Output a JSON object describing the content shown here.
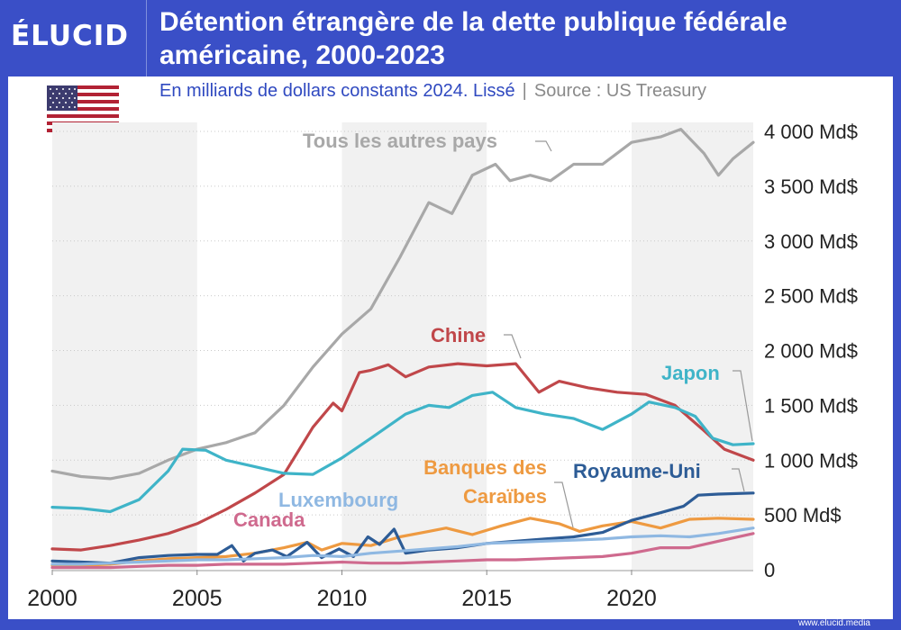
{
  "brand": {
    "logo": "ÉLUCID",
    "url": "www.elucid.media"
  },
  "header": {
    "title": "Détention étrangère de la dette publique fédérale américaine, 2000-2023"
  },
  "subtitle": {
    "text": "En milliards de dollars constants 2024. Lissé",
    "source": "Source : US Treasury"
  },
  "flag": {
    "country": "United States",
    "icon": "us-flag-icon"
  },
  "colors": {
    "brand_blue": "#3a4fc7",
    "grey": "#a8a8a8",
    "red": "#c0474a",
    "teal": "#3fb4c8",
    "orange": "#ee9a41",
    "dark_blue": "#2d5c96",
    "light_blue": "#8fb8e2",
    "pink": "#cf6a8e"
  },
  "chart_data": {
    "type": "line",
    "title": "Détention étrangère de la dette publique fédérale américaine, 2000-2023",
    "ylabel": "En milliards de dollars constants 2024",
    "xlim": [
      2000,
      2024.2
    ],
    "ylim": [
      0,
      4000
    ],
    "x_ticks": [
      "2000",
      "2005",
      "2010",
      "2015",
      "2020"
    ],
    "y_ticks": [
      "0",
      "500 Md$",
      "1 000 Md$",
      "1 500 Md$",
      "2 000 Md$",
      "2 500 Md$",
      "3 000 Md$",
      "3 500 Md$",
      "4 000 Md$"
    ],
    "shaded_bands": [
      [
        2000,
        2005
      ],
      [
        2010,
        2015
      ],
      [
        2020,
        2024.2
      ]
    ],
    "series": [
      {
        "name": "Tous les autres pays",
        "color": "#a8a8a8",
        "points": [
          [
            2000,
            900
          ],
          [
            2001,
            850
          ],
          [
            2002,
            830
          ],
          [
            2003,
            880
          ],
          [
            2004,
            1000
          ],
          [
            2005,
            1100
          ],
          [
            2006,
            1160
          ],
          [
            2007,
            1250
          ],
          [
            2008,
            1500
          ],
          [
            2009,
            1850
          ],
          [
            2010,
            2150
          ],
          [
            2011,
            2380
          ],
          [
            2012,
            2850
          ],
          [
            2013,
            3350
          ],
          [
            2013.8,
            3250
          ],
          [
            2014.5,
            3600
          ],
          [
            2015.3,
            3700
          ],
          [
            2015.8,
            3550
          ],
          [
            2016.5,
            3600
          ],
          [
            2017.2,
            3550
          ],
          [
            2018,
            3700
          ],
          [
            2019,
            3700
          ],
          [
            2020,
            3900
          ],
          [
            2021,
            3950
          ],
          [
            2021.7,
            4020
          ],
          [
            2022.5,
            3800
          ],
          [
            2023,
            3600
          ],
          [
            2023.5,
            3750
          ],
          [
            2024.2,
            3900
          ]
        ]
      },
      {
        "name": "Chine",
        "color": "#c0474a",
        "points": [
          [
            2000,
            190
          ],
          [
            2001,
            180
          ],
          [
            2002,
            220
          ],
          [
            2003,
            270
          ],
          [
            2004,
            330
          ],
          [
            2005,
            420
          ],
          [
            2006,
            550
          ],
          [
            2007,
            700
          ],
          [
            2008,
            870
          ],
          [
            2009,
            1300
          ],
          [
            2009.7,
            1520
          ],
          [
            2010,
            1450
          ],
          [
            2010.6,
            1800
          ],
          [
            2011,
            1820
          ],
          [
            2011.6,
            1870
          ],
          [
            2012.2,
            1760
          ],
          [
            2013,
            1850
          ],
          [
            2014,
            1880
          ],
          [
            2015,
            1860
          ],
          [
            2016,
            1880
          ],
          [
            2016.8,
            1620
          ],
          [
            2017.5,
            1720
          ],
          [
            2018.5,
            1660
          ],
          [
            2019.5,
            1620
          ],
          [
            2020.5,
            1600
          ],
          [
            2021.5,
            1500
          ],
          [
            2022.5,
            1270
          ],
          [
            2023.2,
            1100
          ],
          [
            2024.2,
            1000
          ]
        ]
      },
      {
        "name": "Japon",
        "color": "#3fb4c8",
        "points": [
          [
            2000,
            570
          ],
          [
            2001,
            560
          ],
          [
            2002,
            530
          ],
          [
            2003,
            640
          ],
          [
            2004,
            900
          ],
          [
            2004.5,
            1100
          ],
          [
            2005.3,
            1090
          ],
          [
            2006,
            1000
          ],
          [
            2007,
            940
          ],
          [
            2008,
            880
          ],
          [
            2009,
            870
          ],
          [
            2010,
            1020
          ],
          [
            2011,
            1200
          ],
          [
            2012.2,
            1420
          ],
          [
            2013,
            1500
          ],
          [
            2013.7,
            1480
          ],
          [
            2014.5,
            1590
          ],
          [
            2015.2,
            1620
          ],
          [
            2016,
            1480
          ],
          [
            2017,
            1420
          ],
          [
            2018,
            1380
          ],
          [
            2019,
            1280
          ],
          [
            2020,
            1420
          ],
          [
            2020.6,
            1530
          ],
          [
            2021.5,
            1480
          ],
          [
            2022.2,
            1400
          ],
          [
            2022.8,
            1200
          ],
          [
            2023.5,
            1140
          ],
          [
            2024.2,
            1150
          ]
        ]
      },
      {
        "name": "Banques des Caraïbes",
        "color": "#ee9a41",
        "points": [
          [
            2000,
            40
          ],
          [
            2001,
            40
          ],
          [
            2002,
            50
          ],
          [
            2003,
            80
          ],
          [
            2004,
            100
          ],
          [
            2005,
            110
          ],
          [
            2006,
            120
          ],
          [
            2007,
            150
          ],
          [
            2008,
            200
          ],
          [
            2008.8,
            250
          ],
          [
            2009.3,
            180
          ],
          [
            2010,
            240
          ],
          [
            2011,
            220
          ],
          [
            2012,
            300
          ],
          [
            2013,
            350
          ],
          [
            2013.6,
            380
          ],
          [
            2014.5,
            320
          ],
          [
            2015.5,
            400
          ],
          [
            2016.5,
            470
          ],
          [
            2017.5,
            420
          ],
          [
            2018.2,
            350
          ],
          [
            2019,
            400
          ],
          [
            2020,
            440
          ],
          [
            2021,
            380
          ],
          [
            2022,
            460
          ],
          [
            2023,
            470
          ],
          [
            2024.2,
            460
          ]
        ]
      },
      {
        "name": "Royaume-Uni",
        "color": "#2d5c96",
        "points": [
          [
            2000,
            80
          ],
          [
            2001,
            70
          ],
          [
            2002,
            60
          ],
          [
            2003,
            110
          ],
          [
            2004,
            130
          ],
          [
            2005,
            140
          ],
          [
            2005.7,
            140
          ],
          [
            2006.2,
            220
          ],
          [
            2006.6,
            80
          ],
          [
            2007,
            150
          ],
          [
            2007.6,
            180
          ],
          [
            2008.1,
            120
          ],
          [
            2008.8,
            250
          ],
          [
            2009.3,
            110
          ],
          [
            2009.9,
            190
          ],
          [
            2010.4,
            120
          ],
          [
            2010.9,
            300
          ],
          [
            2011.3,
            230
          ],
          [
            2011.8,
            370
          ],
          [
            2012.2,
            150
          ],
          [
            2013,
            180
          ],
          [
            2014,
            200
          ],
          [
            2015,
            240
          ],
          [
            2016,
            260
          ],
          [
            2017,
            280
          ],
          [
            2018,
            300
          ],
          [
            2019,
            340
          ],
          [
            2020,
            450
          ],
          [
            2021,
            520
          ],
          [
            2021.8,
            580
          ],
          [
            2022.3,
            680
          ],
          [
            2023,
            690
          ],
          [
            2024.2,
            700
          ]
        ]
      },
      {
        "name": "Luxembourg",
        "color": "#8fb8e2",
        "points": [
          [
            2000,
            50
          ],
          [
            2001,
            50
          ],
          [
            2002,
            60
          ],
          [
            2003,
            70
          ],
          [
            2004,
            80
          ],
          [
            2005,
            90
          ],
          [
            2006,
            90
          ],
          [
            2007,
            100
          ],
          [
            2008,
            110
          ],
          [
            2009,
            130
          ],
          [
            2010,
            120
          ],
          [
            2011,
            150
          ],
          [
            2012,
            170
          ],
          [
            2013,
            190
          ],
          [
            2014,
            210
          ],
          [
            2015,
            240
          ],
          [
            2016,
            250
          ],
          [
            2017,
            260
          ],
          [
            2018,
            270
          ],
          [
            2019,
            280
          ],
          [
            2020,
            300
          ],
          [
            2021,
            310
          ],
          [
            2022,
            300
          ],
          [
            2023,
            330
          ],
          [
            2024.2,
            380
          ]
        ]
      },
      {
        "name": "Canada",
        "color": "#cf6a8e",
        "points": [
          [
            2000,
            20
          ],
          [
            2001,
            20
          ],
          [
            2002,
            20
          ],
          [
            2003,
            30
          ],
          [
            2004,
            40
          ],
          [
            2005,
            40
          ],
          [
            2006,
            50
          ],
          [
            2007,
            50
          ],
          [
            2008,
            50
          ],
          [
            2009,
            60
          ],
          [
            2010,
            70
          ],
          [
            2011,
            60
          ],
          [
            2012,
            60
          ],
          [
            2013,
            70
          ],
          [
            2014,
            80
          ],
          [
            2015,
            90
          ],
          [
            2016,
            90
          ],
          [
            2017,
            100
          ],
          [
            2018,
            110
          ],
          [
            2019,
            120
          ],
          [
            2020,
            150
          ],
          [
            2021,
            200
          ],
          [
            2022,
            200
          ],
          [
            2023,
            260
          ],
          [
            2024.2,
            330
          ]
        ]
      }
    ],
    "labels": {
      "others": "Tous les autres pays",
      "china": "Chine",
      "japan": "Japon",
      "caribbean_line1": "Banques des",
      "caribbean_line2": "Caraïbes",
      "uk": "Royaume-Uni",
      "luxembourg": "Luxembourg",
      "canada": "Canada"
    }
  }
}
